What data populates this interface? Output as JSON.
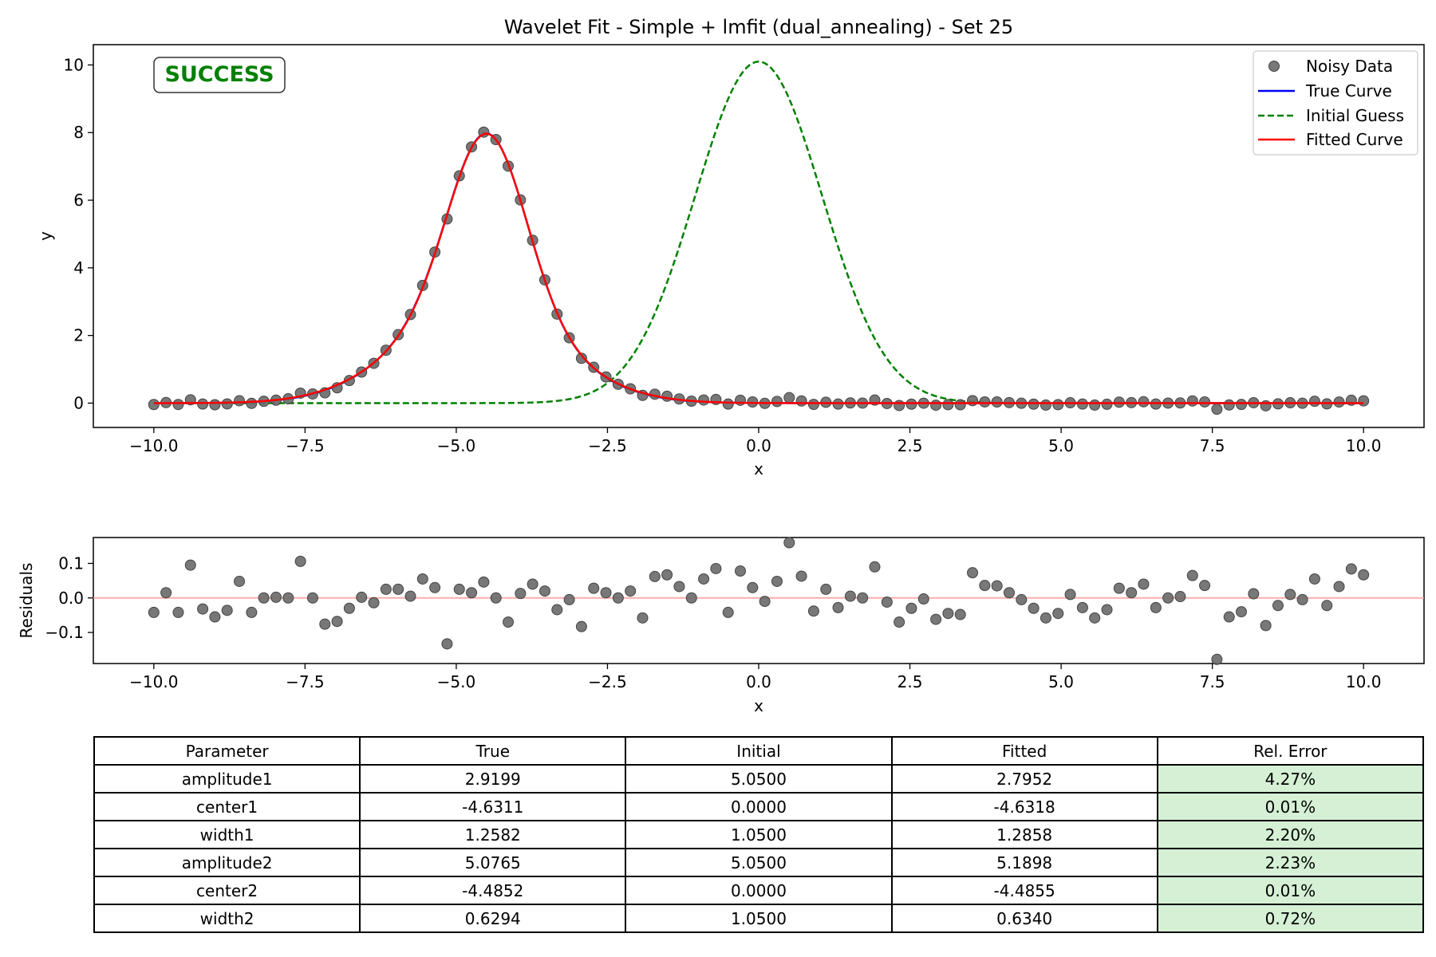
{
  "colors": {
    "noisy": "#696969",
    "true_curve": "#0000ff",
    "initial": "#008000",
    "fitted": "#ff0000",
    "zero_line": "#ff9999",
    "success": "#008000",
    "good_cell": "#d5f0d5"
  },
  "chart_data": [
    {
      "type": "line",
      "title": "Wavelet Fit - Simple + lmfit (dual_annealing) - Set 25",
      "xlabel": "x",
      "ylabel": "y",
      "xlim": [
        -11.0,
        11.0
      ],
      "ylim": [
        -0.72,
        10.6
      ],
      "xticks": [
        -10.0,
        -7.5,
        -5.0,
        -2.5,
        0.0,
        2.5,
        5.0,
        7.5,
        10.0
      ],
      "xtick_labels": [
        "−10.0",
        "−7.5",
        "−5.0",
        "−2.5",
        "0.0",
        "2.5",
        "5.0",
        "7.5",
        "10.0"
      ],
      "yticks": [
        0,
        2,
        4,
        6,
        8,
        10
      ],
      "ytick_labels": [
        "0",
        "2",
        "4",
        "6",
        "8",
        "10"
      ],
      "grid": false,
      "legend_position": "top-right",
      "badge": "SUCCESS",
      "x_range": [
        -10.0,
        10.0
      ],
      "n_points": 100,
      "series": [
        {
          "name": "Noisy Data",
          "style": "markers",
          "values": []
        },
        {
          "name": "True Curve",
          "style": "solid",
          "params": {
            "amplitude1": 2.9199,
            "center1": -4.6311,
            "width1": 1.2582,
            "amplitude2": 5.0765,
            "center2": -4.4852,
            "width2": 0.6294
          }
        },
        {
          "name": "Initial Guess",
          "style": "dashed",
          "params": {
            "amplitude1": 5.05,
            "center1": 0.0,
            "width1": 1.05,
            "amplitude2": 5.05,
            "center2": 0.0,
            "width2": 1.05
          }
        },
        {
          "name": "Fitted Curve",
          "style": "solid",
          "params": {
            "amplitude1": 2.7952,
            "center1": -4.6318,
            "width1": 1.2858,
            "amplitude2": 5.1898,
            "center2": -4.4855,
            "width2": 0.634
          }
        }
      ]
    },
    {
      "type": "scatter",
      "title": "",
      "xlabel": "x",
      "ylabel": "Residuals",
      "xlim": [
        -11.0,
        11.0
      ],
      "ylim": [
        -0.19,
        0.175
      ],
      "xticks": [
        -10.0,
        -7.5,
        -5.0,
        -2.5,
        0.0,
        2.5,
        5.0,
        7.5,
        10.0
      ],
      "xtick_labels": [
        "−10.0",
        "−7.5",
        "−5.0",
        "−2.5",
        "0.0",
        "2.5",
        "5.0",
        "7.5",
        "10.0"
      ],
      "yticks": [
        -0.1,
        0.0,
        0.1
      ],
      "ytick_labels": [
        "−0.1",
        "0.0",
        "0.1"
      ],
      "reference_line": 0.0,
      "x_range": [
        -10.0,
        10.0
      ],
      "residuals": [
        -0.042,
        0.015,
        -0.042,
        0.095,
        -0.032,
        -0.055,
        -0.036,
        0.048,
        -0.042,
        0.0,
        0.002,
        0.0,
        0.106,
        0.0,
        -0.076,
        -0.068,
        -0.03,
        0.002,
        -0.014,
        0.025,
        0.025,
        0.005,
        0.055,
        0.03,
        -0.133,
        0.025,
        0.015,
        0.046,
        0.0,
        -0.07,
        0.013,
        0.04,
        0.02,
        -0.034,
        -0.005,
        -0.083,
        0.028,
        0.015,
        0.0,
        0.02,
        -0.058,
        0.062,
        0.067,
        0.033,
        0.0,
        0.055,
        0.085,
        -0.042,
        0.078,
        0.03,
        -0.01,
        0.048,
        0.16,
        0.063,
        -0.038,
        0.025,
        -0.028,
        0.005,
        0.0,
        0.09,
        -0.012,
        -0.07,
        -0.03,
        -0.003,
        -0.062,
        -0.045,
        -0.048,
        0.073,
        0.036,
        0.035,
        0.015,
        -0.005,
        -0.03,
        -0.058,
        -0.045,
        0.01,
        -0.028,
        -0.058,
        -0.034,
        0.028,
        0.015,
        0.04,
        -0.028,
        0.0,
        0.004,
        0.065,
        0.036,
        -0.178,
        -0.055,
        -0.04,
        0.012,
        -0.08,
        -0.022,
        0.01,
        -0.005,
        0.055,
        -0.022,
        0.033,
        0.084,
        0.067
      ]
    }
  ],
  "table": {
    "headers": [
      "Parameter",
      "True",
      "Initial",
      "Fitted",
      "Rel. Error"
    ],
    "rows": [
      [
        "amplitude1",
        "2.9199",
        "5.0500",
        "2.7952",
        "4.27%"
      ],
      [
        "center1",
        "-4.6311",
        "0.0000",
        "-4.6318",
        "0.01%"
      ],
      [
        "width1",
        "1.2582",
        "1.0500",
        "1.2858",
        "2.20%"
      ],
      [
        "amplitude2",
        "5.0765",
        "5.0500",
        "5.1898",
        "2.23%"
      ],
      [
        "center2",
        "-4.4852",
        "0.0000",
        "-4.4855",
        "0.01%"
      ],
      [
        "width2",
        "0.6294",
        "1.0500",
        "0.6340",
        "0.72%"
      ]
    ]
  }
}
